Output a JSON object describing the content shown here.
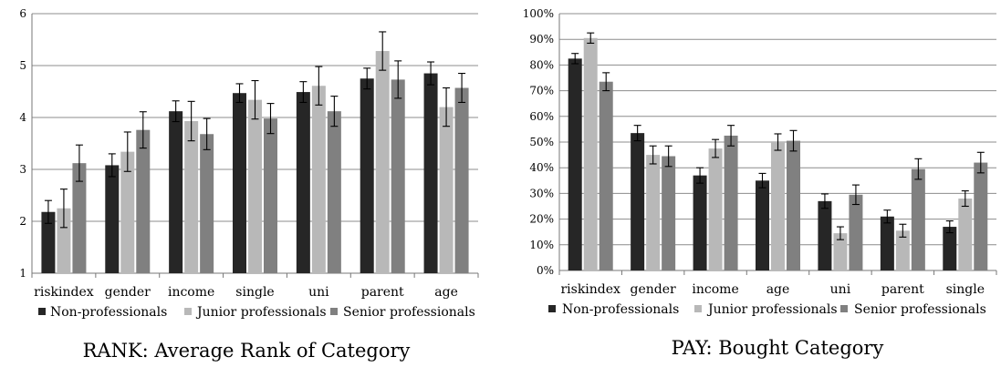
{
  "chart_data": [
    {
      "type": "bar",
      "title": "RANK: Average Rank of Category",
      "xlabel": "",
      "ylabel": "",
      "ylim": [
        1,
        6
      ],
      "yticks": [
        "1",
        "2",
        "3",
        "4",
        "5",
        "6"
      ],
      "grid": true,
      "legend": "bottom",
      "error_bars": true,
      "categories": [
        "riskindex",
        "gender",
        "income",
        "single",
        "uni",
        "parent",
        "age"
      ],
      "series": [
        {
          "name": "Non-professionals",
          "color": "#262626",
          "values": [
            2.18,
            3.08,
            4.12,
            4.47,
            4.49,
            4.75,
            4.85
          ],
          "err": [
            0.22,
            0.22,
            0.2,
            0.18,
            0.2,
            0.2,
            0.22
          ]
        },
        {
          "name": "Junior professionals",
          "color": "#b8b8b8",
          "values": [
            2.25,
            3.34,
            3.93,
            4.34,
            4.61,
            5.28,
            4.2
          ],
          "err": [
            0.37,
            0.38,
            0.38,
            0.37,
            0.37,
            0.37,
            0.37
          ]
        },
        {
          "name": "Senior professionals",
          "color": "#808080",
          "values": [
            3.12,
            3.76,
            3.68,
            3.98,
            4.12,
            4.73,
            4.57
          ],
          "err": [
            0.35,
            0.35,
            0.3,
            0.29,
            0.29,
            0.36,
            0.28
          ]
        }
      ]
    },
    {
      "type": "bar",
      "title": "PAY: Bought Category",
      "xlabel": "",
      "ylabel": "",
      "ylim": [
        0,
        100
      ],
      "yticks": [
        "0%",
        "10%",
        "20%",
        "30%",
        "40%",
        "50%",
        "60%",
        "70%",
        "80%",
        "90%",
        "100%"
      ],
      "grid": true,
      "legend": "bottom",
      "error_bars": true,
      "categories": [
        "riskindex",
        "gender",
        "income",
        "age",
        "uni",
        "parent",
        "single"
      ],
      "series": [
        {
          "name": "Non-professionals",
          "color": "#262626",
          "values": [
            82.5,
            53.5,
            37.0,
            35.0,
            27.0,
            21.0,
            17.0
          ],
          "err": [
            2.0,
            3.0,
            3.0,
            2.8,
            2.8,
            2.5,
            2.3
          ]
        },
        {
          "name": "Junior professionals",
          "color": "#b8b8b8",
          "values": [
            90.5,
            45.0,
            47.5,
            50.0,
            14.5,
            15.5,
            28.0
          ],
          "err": [
            2.0,
            3.5,
            3.5,
            3.2,
            2.5,
            2.5,
            3.0
          ]
        },
        {
          "name": "Senior professionals",
          "color": "#808080",
          "values": [
            73.5,
            44.5,
            52.5,
            50.5,
            29.5,
            39.5,
            42.0
          ],
          "err": [
            3.5,
            4.0,
            4.0,
            4.0,
            3.8,
            4.0,
            4.0
          ]
        }
      ]
    }
  ]
}
